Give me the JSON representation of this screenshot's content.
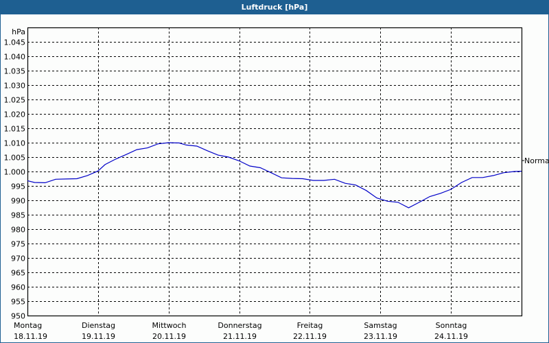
{
  "window": {
    "title": "Luftdruck [hPa]",
    "colors": {
      "titlebar": "#1e5f91",
      "background": "#fcfdfc",
      "line": "#0000c8",
      "grid": "#000000"
    }
  },
  "chart_data": {
    "type": "line",
    "title": "Luftdruck [hPa]",
    "xlabel": "",
    "ylabel": "hPa",
    "ylim": [
      950,
      1050
    ],
    "yticks": [
      "1.045",
      "1.040",
      "1.035",
      "1.030",
      "1.025",
      "1.020",
      "1.015",
      "1.010",
      "1.005",
      "1.000",
      "995",
      "990",
      "985",
      "980",
      "975",
      "970",
      "965",
      "960",
      "955",
      "950"
    ],
    "ytick_values": [
      1045,
      1040,
      1035,
      1030,
      1025,
      1020,
      1015,
      1010,
      1005,
      1000,
      995,
      990,
      985,
      980,
      975,
      970,
      965,
      960,
      955,
      950
    ],
    "grid": true,
    "grid_style": "dashed",
    "categories": [
      {
        "day": "Montag",
        "date": "18.11.19"
      },
      {
        "day": "Dienstag",
        "date": "19.11.19"
      },
      {
        "day": "Mittwoch",
        "date": "20.11.19"
      },
      {
        "day": "Donnerstag",
        "date": "21.11.19"
      },
      {
        "day": "Freitag",
        "date": "22.11.19"
      },
      {
        "day": "Samstag",
        "date": "23.11.19"
      },
      {
        "day": "Sonntag",
        "date": "24.11.19"
      }
    ],
    "reference_line": {
      "label": "Normal",
      "value": 1003.8
    },
    "series": [
      {
        "name": "Luftdruck",
        "x_days": [
          0,
          0.1,
          0.25,
          0.4,
          0.55,
          0.7,
          0.85,
          1.0,
          1.1,
          1.25,
          1.4,
          1.55,
          1.7,
          1.85,
          2.0,
          2.15,
          2.25,
          2.4,
          2.55,
          2.7,
          2.85,
          3.0,
          3.15,
          3.3,
          3.45,
          3.6,
          3.75,
          3.9,
          4.05,
          4.2,
          4.35,
          4.5,
          4.65,
          4.8,
          4.95,
          5.1,
          5.25,
          5.4,
          5.55,
          5.7,
          5.85,
          6.0,
          6.15,
          6.3,
          6.45,
          6.6,
          6.75,
          6.9,
          7.0
        ],
        "values": [
          996.8,
          996.2,
          996.1,
          997.3,
          997.4,
          997.5,
          998.6,
          1000.2,
          1002.4,
          1004.3,
          1005.9,
          1007.6,
          1008.2,
          1009.6,
          1010.0,
          1009.9,
          1009.2,
          1008.8,
          1007.2,
          1005.7,
          1005.0,
          1003.7,
          1001.9,
          1001.3,
          999.6,
          997.8,
          997.6,
          997.5,
          996.9,
          996.9,
          997.3,
          995.9,
          995.3,
          993.4,
          990.8,
          989.7,
          989.3,
          987.4,
          989.3,
          991.3,
          992.4,
          993.8,
          996.2,
          997.9,
          997.9,
          998.6,
          999.6,
          1000.0,
          1000.1
        ]
      }
    ]
  }
}
